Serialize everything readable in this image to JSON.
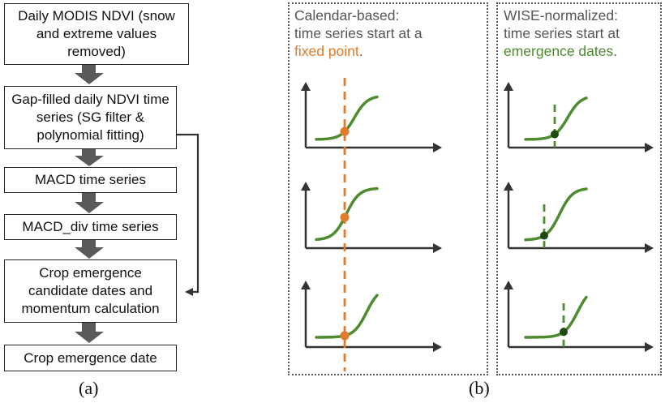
{
  "flowchart": {
    "steps": [
      {
        "id": "step-1",
        "text": "Daily MODIS NDVI (snow and extreme values removed)"
      },
      {
        "id": "step-2",
        "text": "Gap-filled daily NDVI time series (SG filter & polynomial fitting)"
      },
      {
        "id": "step-3",
        "text": "MACD time series"
      },
      {
        "id": "step-4",
        "text": "MACD_div time series"
      },
      {
        "id": "step-5",
        "text": "Crop emergence candidate dates and momentum calculation"
      },
      {
        "id": "step-6",
        "text": "Crop emergence date"
      }
    ],
    "caption": "(a)"
  },
  "panels": {
    "calendar": {
      "title_line1": "Calendar-based:",
      "title_line2": "time series start at a",
      "title_highlight": "fixed point",
      "title_end": "."
    },
    "wise": {
      "title_line1": "WISE-normalized:",
      "title_line2": "time series start at",
      "title_highlight": "emergence dates",
      "title_end": "."
    },
    "caption": "(b)"
  },
  "colors": {
    "curve_green": "#4E8A2E",
    "marker_orange": "#E07B2B",
    "marker_dark_green": "#1F4A12",
    "arrow_gray": "#5A5A5A",
    "axis": "#333333"
  }
}
